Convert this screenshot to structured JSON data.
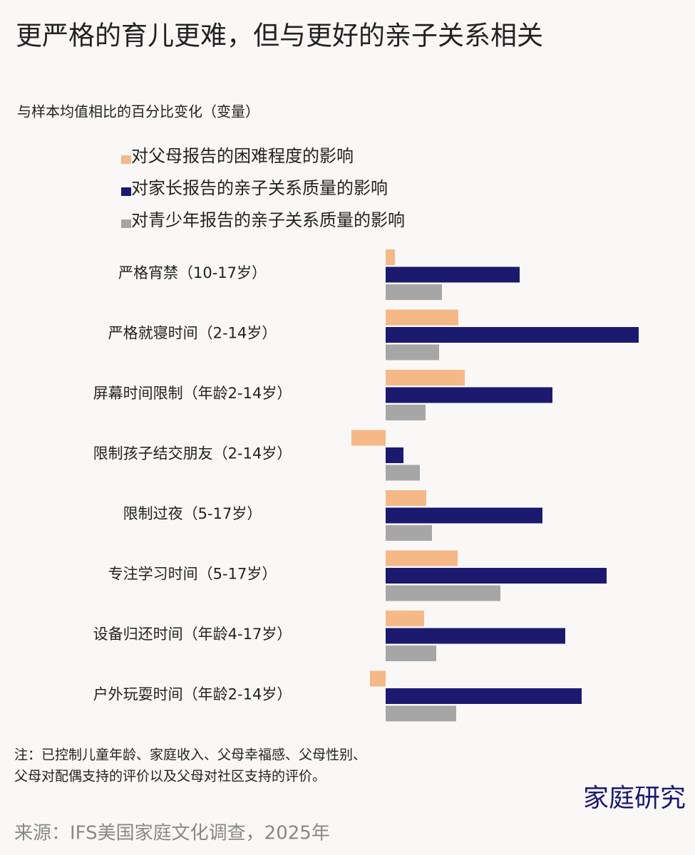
{
  "chart_data": {
    "type": "bar",
    "orientation": "horizontal",
    "title": "更严格的育儿更难，但与更好的亲子关系相关",
    "subtitle": "与样本均值相比的百分比变化（变量）",
    "categories": [
      "严格宵禁（10-17岁）",
      "严格就寝时间（2-14岁）",
      "屏幕时间限制（年龄2-14岁）",
      "限制孩子结交朋友（2-14岁）",
      "限制过夜（5-17岁）",
      "专注学习时间（5-17岁）",
      "设备归还时间（年龄4-17岁）",
      "户外玩耍时间（年龄2-14岁）"
    ],
    "series": [
      {
        "name": "对父母报告的困难程度的影响",
        "color": "#f5b887",
        "values": [
          1.3,
          10.2,
          11.1,
          -4.8,
          5.7,
          10.1,
          5.4,
          -2.2
        ]
      },
      {
        "name": "对家长报告的亲子关系质量的影响",
        "color": "#1c1a6e",
        "values": [
          18.8,
          35.5,
          23.4,
          2.5,
          22,
          31,
          25.2,
          27.5
        ]
      },
      {
        "name": "对青少年报告的亲子关系质量的影响",
        "color": "#a6a6a6",
        "values": [
          7.9,
          7.5,
          5.6,
          4.8,
          6.5,
          16.1,
          7.1,
          9.9
        ]
      }
    ],
    "xlim": [
      -10,
      36
    ],
    "note": [
      "注：已控制儿童年龄、家庭收入、父母幸福感、父母性别、",
      "父母对配偶支持的评价以及父母对社区支持的评价。"
    ],
    "watermark": "家庭研究",
    "source": "来源：IFS美国家庭文化调查，2025年"
  }
}
